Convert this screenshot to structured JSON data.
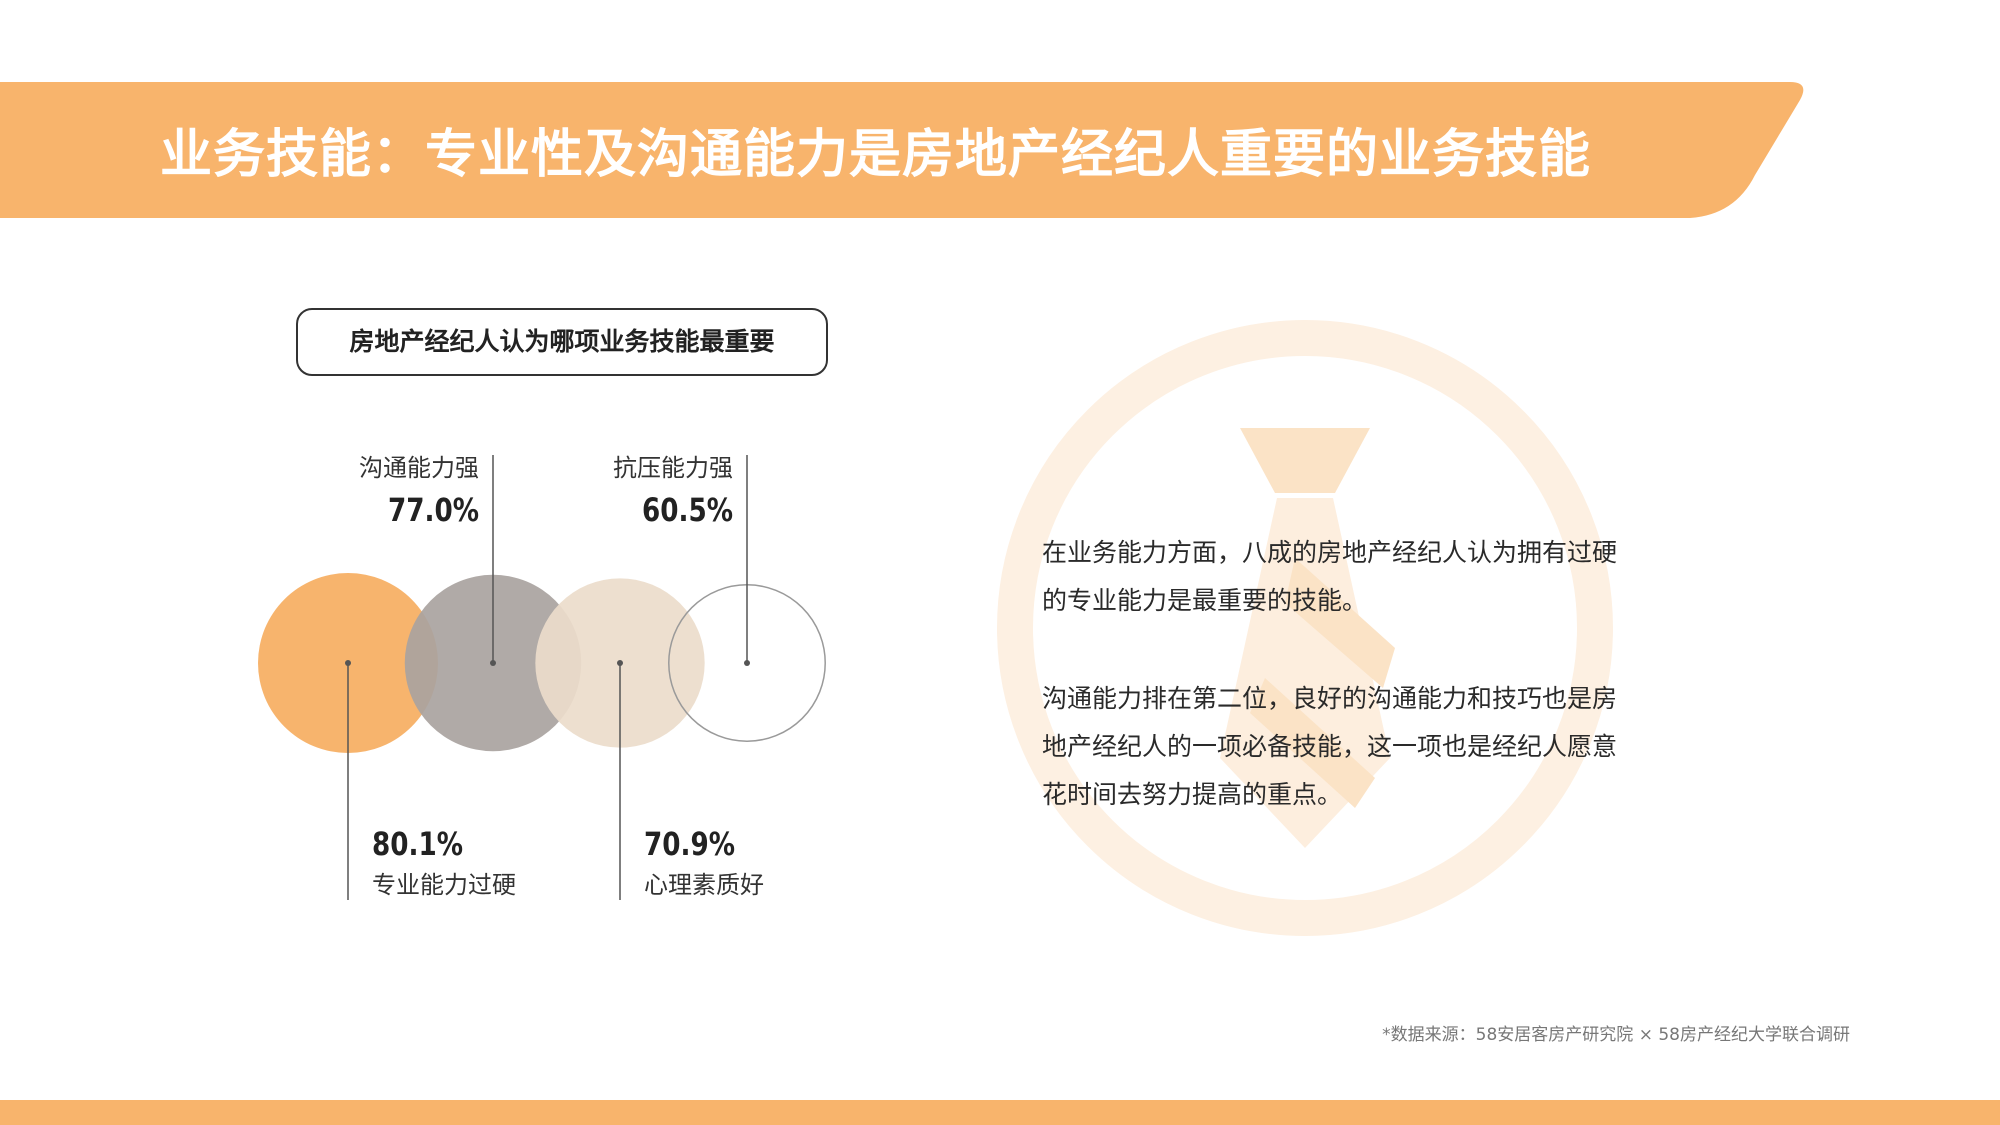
{
  "colors": {
    "accent": "#f8b46c",
    "text": "#222222",
    "circle_orange": "#f6ae61",
    "circle_gray": "#a9a3a0",
    "circle_beige": "#ecdccb",
    "circle_outline": "#9a9a9a"
  },
  "header": {
    "title": "业务技能：专业性及沟通能力是房地产经纪人重要的业务技能"
  },
  "watermark": {
    "icon": "tie-icon"
  },
  "chart_data": {
    "type": "bubble",
    "title": "房地产经纪人认为哪项业务技能最重要",
    "unit": "%",
    "series": [
      {
        "label": "专业能力过硬",
        "value": 80.1,
        "value_label": "80.1%",
        "color": "#f6ae61",
        "style": "filled",
        "label_position": "bottom"
      },
      {
        "label": "沟通能力强",
        "value": 77.0,
        "value_label": "77.0%",
        "color": "#a9a3a0",
        "style": "filled",
        "label_position": "top"
      },
      {
        "label": "心理素质好",
        "value": 70.9,
        "value_label": "70.9%",
        "color": "#ecdccb",
        "style": "filled",
        "label_position": "bottom"
      },
      {
        "label": "抗压能力强",
        "value": 60.5,
        "value_label": "60.5%",
        "color": "#9a9a9a",
        "style": "outline",
        "label_position": "top"
      }
    ]
  },
  "body": {
    "paragraph1": "在业务能力方面，八成的房地产经纪人认为拥有过硬的专业能力是最重要的技能。",
    "paragraph2": "沟通能力排在第二位，良好的沟通能力和技巧也是房地产经纪人的一项必备技能，这一项也是经纪人愿意花时间去努力提高的重点。"
  },
  "footer": {
    "source": "*数据来源：58安居客房产研究院 × 58房产经纪大学联合调研"
  }
}
